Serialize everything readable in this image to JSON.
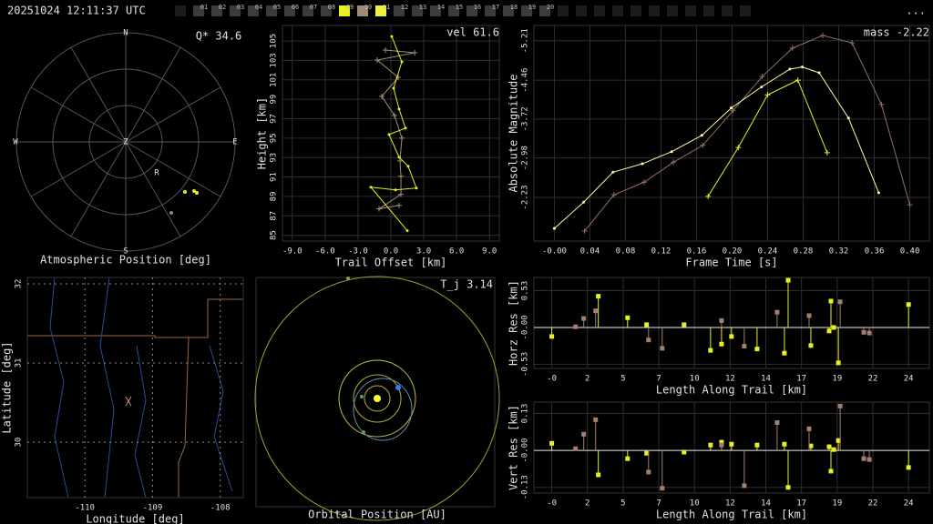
{
  "header": {
    "timestamp": "20251024 12:11:37 UTC",
    "menu": "...",
    "cameras": [
      {
        "label": "01",
        "color": "#3c3c3c"
      },
      {
        "label": "02",
        "color": "#3c3c3c"
      },
      {
        "label": "03",
        "color": "#3c3c3c"
      },
      {
        "label": "04",
        "color": "#3c3c3c"
      },
      {
        "label": "05",
        "color": "#3c3c3c"
      },
      {
        "label": "06",
        "color": "#3c3c3c"
      },
      {
        "label": "07",
        "color": "#3c3c3c"
      },
      {
        "label": "08",
        "color": "#3c3c3c"
      },
      {
        "label": "09",
        "color": "#e8f020"
      },
      {
        "label": "10",
        "color": "#a08878"
      },
      {
        "label": "11",
        "color": "#f0f040"
      },
      {
        "label": "12",
        "color": "#3c3c3c"
      },
      {
        "label": "13",
        "color": "#3c3c3c"
      },
      {
        "label": "14",
        "color": "#3c3c3c"
      },
      {
        "label": "15",
        "color": "#3c3c3c"
      },
      {
        "label": "16",
        "color": "#3c3c3c"
      },
      {
        "label": "17",
        "color": "#3c3c3c"
      },
      {
        "label": "18",
        "color": "#3c3c3c"
      },
      {
        "label": "19",
        "color": "#3c3c3c"
      },
      {
        "label": "20",
        "color": "#3c3c3c"
      }
    ]
  },
  "sky_plot": {
    "title": "Atmospheric Position [deg]",
    "annotation": "Q* 34.6",
    "directions": [
      "N",
      "E",
      "S",
      "W",
      "Z"
    ],
    "marker": "R"
  },
  "orbit": {
    "title": "Orbital Position [AU]",
    "annotation": "T_j 3.14"
  },
  "chart_data": [
    {
      "type": "line",
      "annotation": "vel 61.6",
      "xlabel": "Trail Offset [km]",
      "ylabel": "Height [km]",
      "xlim": [
        -9.9,
        9.9
      ],
      "ylim": [
        84.4,
        106.6
      ],
      "xticks": [
        {
          "value": -9,
          "label": "-9.0"
        },
        {
          "value": -6,
          "label": "-6.0"
        },
        {
          "value": -3,
          "label": "-3.0"
        },
        {
          "value": 0,
          "label": "0.0"
        },
        {
          "value": 3,
          "label": "3.0"
        },
        {
          "value": 6,
          "label": "6.0"
        },
        {
          "value": 9,
          "label": "9.0"
        }
      ],
      "yticks": [
        85,
        87,
        89,
        91,
        93,
        95,
        97,
        99,
        101,
        103,
        105
      ],
      "grid": true,
      "series": [
        {
          "color": "#a09070",
          "marker": "+",
          "x": [
            -0.5,
            2.17,
            -1.25,
            0.67,
            -0.83,
            0.33,
            1.0,
            0.83,
            0.92,
            0.92,
            -1.08,
            0.75
          ],
          "values": [
            104.07,
            103.79,
            103.04,
            101.26,
            99.3,
            97.34,
            95.0,
            92.66,
            91.07,
            89.21,
            87.71,
            88.08
          ]
        },
        {
          "color": "#e8f020",
          "marker": "dot",
          "x": [
            0.08,
            1.0,
            0.25,
            0.75,
            1.33,
            -0.17,
            0.75,
            1.58,
            2.33,
            0.42,
            -1.83,
            1.5
          ],
          "values": [
            105.47,
            102.85,
            100.14,
            97.99,
            96.03,
            95.37,
            93.04,
            92.1,
            89.86,
            89.67,
            89.95,
            85.47
          ]
        }
      ]
    },
    {
      "type": "line",
      "annotation": "mass -2.22",
      "xlabel": "Frame Time [s]",
      "ylabel": "Absolute Magnitude",
      "xlim": [
        -0.023,
        0.422
      ],
      "ylim": [
        -1.4,
        -5.5
      ],
      "xticks": [
        {
          "value": 0,
          "label": "-0.00"
        },
        {
          "value": 0.04,
          "label": "0.04"
        },
        {
          "value": 0.08,
          "label": "0.08"
        },
        {
          "value": 0.12,
          "label": "0.12"
        },
        {
          "value": 0.16,
          "label": "0.16"
        },
        {
          "value": 0.2,
          "label": "0.20"
        },
        {
          "value": 0.24,
          "label": "0.24"
        },
        {
          "value": 0.28,
          "label": "0.28"
        },
        {
          "value": 0.32,
          "label": "0.32"
        },
        {
          "value": 0.36,
          "label": "0.36"
        },
        {
          "value": 0.4,
          "label": "0.40"
        }
      ],
      "yticks": [
        -5.21,
        -4.46,
        -3.72,
        -2.98,
        -2.23
      ],
      "grid": true,
      "series": [
        {
          "color": "#907060",
          "marker": "+",
          "x": [
            0.034,
            0.067,
            0.101,
            0.134,
            0.167,
            0.201,
            0.234,
            0.268,
            0.302,
            0.335,
            0.368,
            0.4
          ],
          "values": [
            -1.59,
            -2.28,
            -2.52,
            -2.9,
            -3.22,
            -3.88,
            -4.53,
            -5.07,
            -5.31,
            -5.17,
            -4.0,
            -2.09
          ]
        },
        {
          "color": "#e8f020",
          "marker": "+",
          "x": [
            0.173,
            0.207,
            0.24,
            0.274,
            0.307
          ],
          "values": [
            -2.25,
            -3.18,
            -4.18,
            -4.46,
            -3.08
          ]
        },
        {
          "color": "#ffffa0",
          "marker": "dot",
          "x": [
            0.0,
            0.033,
            0.066,
            0.099,
            0.132,
            0.166,
            0.199,
            0.233,
            0.265,
            0.279,
            0.298,
            0.331,
            0.365
          ],
          "values": [
            -1.64,
            -2.14,
            -2.71,
            -2.87,
            -3.1,
            -3.41,
            -3.93,
            -4.33,
            -4.67,
            -4.71,
            -4.6,
            -3.74,
            -2.32
          ]
        }
      ]
    },
    {
      "type": "map",
      "xlabel": "Longitude [deg]",
      "ylabel": "Latitude [deg]",
      "xlim": [
        -110.85,
        -107.66
      ],
      "ylim": [
        29.3,
        32.08
      ],
      "xticks": [
        -110,
        -109,
        -108
      ],
      "yticks": [
        30,
        31,
        32
      ],
      "grid": true,
      "series": []
    },
    {
      "type": "stem",
      "xlabel": "Length Along Trail [km]",
      "ylabel": "Horz Res [km]",
      "xlim": [
        -1.2,
        25.4
      ],
      "ylim": [
        -0.59,
        0.72
      ],
      "xticks": [
        {
          "value": 0,
          "label": "-0"
        },
        {
          "value": 2.4,
          "label": "2"
        },
        {
          "value": 4.8,
          "label": "5"
        },
        {
          "value": 7.2,
          "label": "7"
        },
        {
          "value": 9.6,
          "label": "10"
        },
        12,
        {
          "value": 14.4,
          "label": "14"
        },
        {
          "value": 16.8,
          "label": "17"
        },
        {
          "value": 19.2,
          "label": "19"
        },
        {
          "value": 21.6,
          "label": "22"
        },
        24
      ],
      "yticks": [
        0.53,
        {
          "value": 0,
          "label": "-0.00"
        },
        -0.53
      ],
      "grid": true,
      "series": [
        {
          "color": "#e8f020",
          "marker": "square",
          "x": [
            0,
            3.13,
            5.1,
            6.38,
            8.9,
            10.68,
            11.42,
            12.09,
            13.81,
            15.9,
            15.65,
            17.43,
            18.66,
            18.78,
            18.97,
            19.28,
            24.0
          ],
          "values": [
            -0.13,
            0.45,
            0.14,
            0.04,
            0.04,
            -0.33,
            -0.24,
            -0.13,
            -0.31,
            0.68,
            -0.37,
            -0.26,
            -0.05,
            0.38,
            0.0,
            -0.51,
            0.33
          ]
        },
        {
          "color": "#a08070",
          "marker": "square",
          "x": [
            1.6,
            2.15,
            2.95,
            6.51,
            7.43,
            11.42,
            12.95,
            15.16,
            17.31,
            19.4,
            20.99,
            21.36
          ],
          "values": [
            0.01,
            0.13,
            0.24,
            -0.18,
            -0.3,
            0.1,
            -0.27,
            0.22,
            0.17,
            0.37,
            -0.07,
            -0.08
          ]
        }
      ]
    },
    {
      "type": "stem",
      "xlabel": "Length Along Trail [km]",
      "ylabel": "Vert Res [km]",
      "xlim": [
        -1.2,
        25.4
      ],
      "ylim": [
        -0.15,
        0.17
      ],
      "xticks": [
        {
          "value": 0,
          "label": "-0"
        },
        {
          "value": 2.4,
          "label": "2"
        },
        {
          "value": 4.8,
          "label": "5"
        },
        {
          "value": 7.2,
          "label": "7"
        },
        {
          "value": 9.6,
          "label": "10"
        },
        12,
        {
          "value": 14.4,
          "label": "14"
        },
        {
          "value": 16.8,
          "label": "17"
        },
        {
          "value": 19.2,
          "label": "19"
        },
        {
          "value": 21.6,
          "label": "22"
        },
        24
      ],
      "yticks": [
        0.13,
        {
          "value": 0,
          "label": "-0.00"
        },
        -0.13
      ],
      "grid": true,
      "series": [
        {
          "color": "#e8f020",
          "marker": "square",
          "x": [
            0,
            3.13,
            5.1,
            6.38,
            8.9,
            10.68,
            11.42,
            12.09,
            13.81,
            15.9,
            15.65,
            17.43,
            18.66,
            18.78,
            18.97,
            19.28,
            24.0
          ],
          "values": [
            0.025,
            -0.086,
            -0.029,
            -0.01,
            -0.006,
            0.019,
            0.029,
            0.022,
            0.019,
            -0.13,
            0.022,
            0.016,
            0.013,
            -0.073,
            0.003,
            0.035,
            -0.06
          ]
        },
        {
          "color": "#a08070",
          "marker": "square",
          "x": [
            1.6,
            2.15,
            2.95,
            6.51,
            7.43,
            11.42,
            12.95,
            15.16,
            17.31,
            19.4,
            20.99,
            21.36
          ],
          "values": [
            0.006,
            0.057,
            0.108,
            -0.076,
            -0.133,
            0.019,
            -0.124,
            0.098,
            0.076,
            0.156,
            -0.029,
            -0.032
          ]
        }
      ]
    }
  ]
}
